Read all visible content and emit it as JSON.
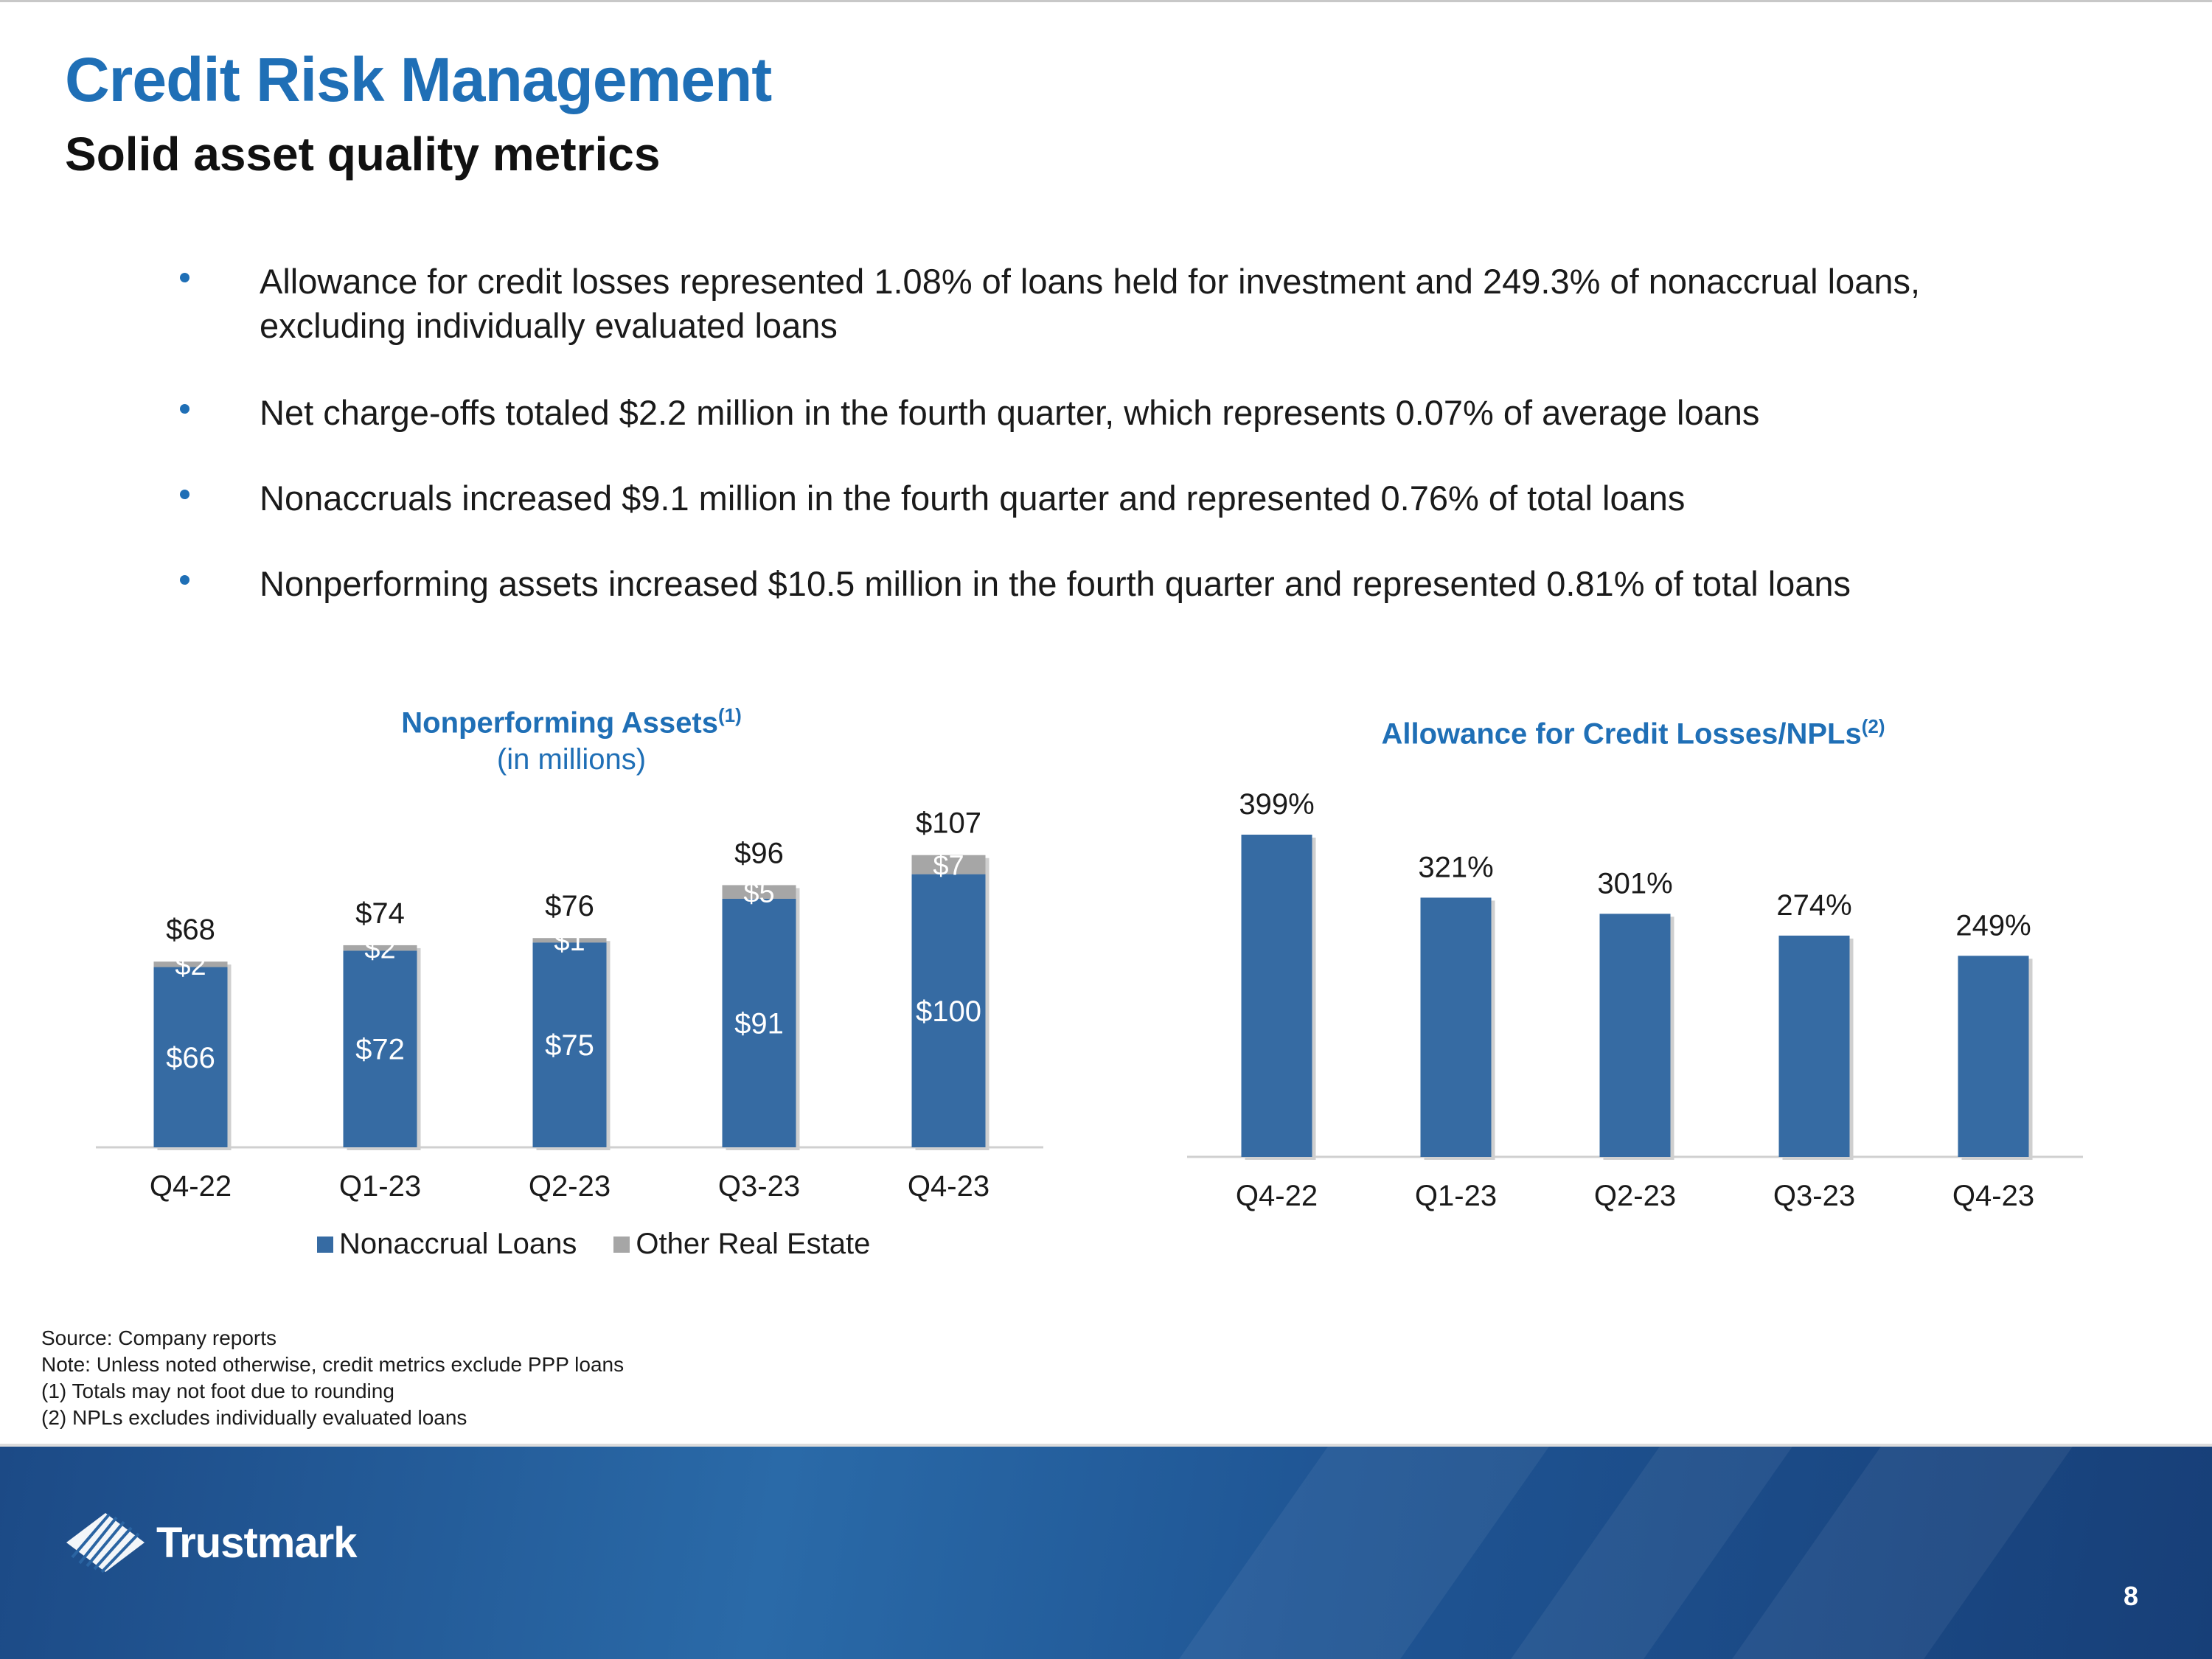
{
  "header": {
    "title": "Credit Risk Management",
    "subtitle": "Solid asset quality metrics"
  },
  "bullets": [
    "Allowance for credit losses represented 1.08% of loans held for investment and 249.3% of nonaccrual loans, excluding individually evaluated loans",
    "Net charge-offs totaled $2.2 million in the fourth quarter, which represents 0.07% of average loans",
    "Nonaccruals increased $9.1 million in the fourth quarter and represented 0.76% of total loans",
    "Nonperforming assets increased $10.5 million in the fourth quarter and represented 0.81% of total loans"
  ],
  "chart_data": [
    {
      "type": "bar",
      "stacked": true,
      "title": "Nonperforming Assets",
      "title_footnote": "(1)",
      "subtitle": "(in millions)",
      "categories": [
        "Q4-22",
        "Q1-23",
        "Q2-23",
        "Q3-23",
        "Q4-23"
      ],
      "series": [
        {
          "name": "Nonaccrual Loans",
          "values": [
            66,
            72,
            75,
            91,
            100
          ],
          "labels": [
            "$66",
            "$72",
            "$75",
            "$91",
            "$100"
          ],
          "color": "#366ba3"
        },
        {
          "name": "Other Real Estate",
          "values": [
            2,
            2,
            1,
            5,
            7
          ],
          "labels": [
            "$2",
            "$2",
            "$1",
            "$5",
            "$7"
          ],
          "color": "#a6a6a6"
        }
      ],
      "totals": [
        68,
        74,
        76,
        96,
        107
      ],
      "total_labels": [
        "$68",
        "$74",
        "$76",
        "$96",
        "$107"
      ],
      "ylim": [
        0,
        110
      ],
      "xlabel": "",
      "ylabel": "",
      "legend": "bottom"
    },
    {
      "type": "bar",
      "title": "Allowance for Credit Losses/NPLs",
      "title_footnote": "(2)",
      "categories": [
        "Q4-22",
        "Q1-23",
        "Q2-23",
        "Q3-23",
        "Q4-23"
      ],
      "values": [
        399,
        321,
        301,
        274,
        249
      ],
      "labels": [
        "399%",
        "321%",
        "301%",
        "274%",
        "249%"
      ],
      "color": "#366ba3",
      "ylim": [
        0,
        420
      ],
      "xlabel": "",
      "ylabel": ""
    }
  ],
  "notes": [
    "Source: Company reports",
    "Note: Unless noted otherwise, credit metrics exclude PPP loans",
    "(1) Totals may not foot due to rounding",
    "(2) NPLs excludes individually evaluated loans"
  ],
  "footer": {
    "logo_text": "Trustmark",
    "page_number": "8"
  },
  "colors": {
    "accent": "#1f6fb6",
    "bar": "#366ba3",
    "other": "#a6a6a6"
  }
}
